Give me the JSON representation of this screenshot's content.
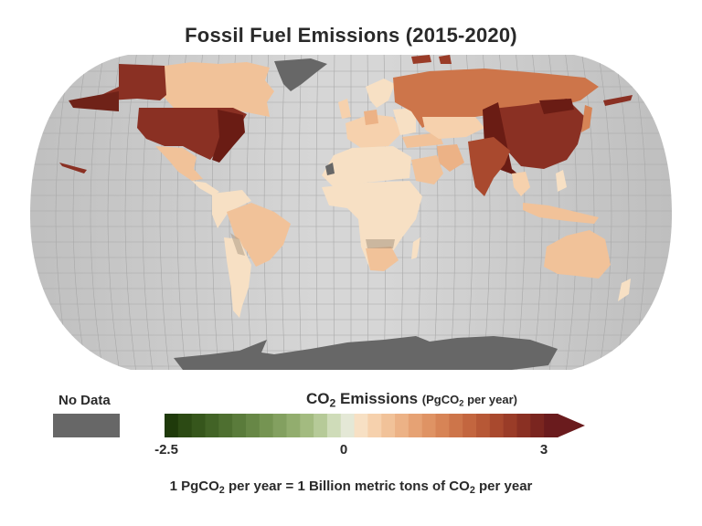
{
  "title": "Fossil Fuel Emissions (2015-2020)",
  "legend": {
    "no_data_label": "No Data",
    "no_data_color": "#676767",
    "title_main": "CO",
    "title_sub": "2",
    "title_rest": " Emissions ",
    "unit_pre": "(PgCO",
    "unit_sub": "2",
    "unit_post": " per year)",
    "ticks": [
      {
        "label": "-2.5",
        "value": -2.5
      },
      {
        "label": "0",
        "value": 0
      },
      {
        "label": "3",
        "value": 3
      }
    ],
    "min": -2.5,
    "max": 3,
    "extend": "max",
    "colors": [
      "#1f3a0b",
      "#2c4a14",
      "#36561c",
      "#426326",
      "#4e6f30",
      "#5a7b3b",
      "#678746",
      "#759452",
      "#83a060",
      "#92ad6e",
      "#a3bb80",
      "#b6ca98",
      "#cfdcb9",
      "#e4e8d6",
      "#f7e0c4",
      "#f6d1ad",
      "#f1c299",
      "#ecb286",
      "#e6a274",
      "#df9364",
      "#d78456",
      "#cd754a",
      "#c3663f",
      "#b75836",
      "#a9492e",
      "#9a3c28",
      "#8a3023",
      "#7a251f",
      "#6a1b1d"
    ]
  },
  "footnote": {
    "p1": "1 PgCO",
    "s1": "2",
    "p2": " per year = 1 Billion metric tons of CO",
    "s2": "2",
    "p3": " per year"
  },
  "chart_data": {
    "type": "choropleth-3d-map",
    "title": "Fossil Fuel Emissions (2015-2020)",
    "projection": "Robinson",
    "variable": "CO2 Emissions",
    "unit": "PgCO2 per year",
    "unit_note": "1 PgCO2 per year = 1 Billion metric tons of CO2 per year",
    "scale": {
      "min": -2.5,
      "max": 3,
      "ticks": [
        -2.5,
        0,
        3
      ],
      "diverging_center": 0,
      "low_color": "green",
      "high_color": "dark red"
    },
    "no_data": [
      "Greenland",
      "Antarctica",
      "Western Sahara"
    ],
    "regions": [
      {
        "name": "China",
        "approx_value": 3.0,
        "color": "#8a3023"
      },
      {
        "name": "United States",
        "approx_value": 3.0,
        "color": "#8a3023"
      },
      {
        "name": "India",
        "approx_value": 2.2,
        "color": "#a9492e"
      },
      {
        "name": "Russia",
        "approx_value": 1.6,
        "color": "#cd754a"
      },
      {
        "name": "Japan",
        "approx_value": 1.1,
        "color": "#d78456"
      },
      {
        "name": "Iran",
        "approx_value": 0.7,
        "color": "#ecb286"
      },
      {
        "name": "Saudi Arabia",
        "approx_value": 0.6,
        "color": "#f1c299"
      },
      {
        "name": "Germany",
        "approx_value": 0.7,
        "color": "#ecb286"
      },
      {
        "name": "Canada",
        "approx_value": 0.5,
        "color": "#f1c299"
      },
      {
        "name": "Brazil",
        "approx_value": 0.5,
        "color": "#f1c299"
      },
      {
        "name": "Mexico",
        "approx_value": 0.4,
        "color": "#f1c299"
      },
      {
        "name": "Indonesia",
        "approx_value": 0.6,
        "color": "#f1c299"
      },
      {
        "name": "Australia",
        "approx_value": 0.4,
        "color": "#f1c299"
      },
      {
        "name": "South Africa",
        "approx_value": 0.45,
        "color": "#f1c299"
      },
      {
        "name": "Africa (most countries)",
        "approx_value": 0.05,
        "color": "#f7e0c4"
      },
      {
        "name": "South America (others)",
        "approx_value": 0.1,
        "color": "#f6d1ad"
      },
      {
        "name": "Europe (others)",
        "approx_value": 0.2,
        "color": "#f6d1ad"
      }
    ]
  }
}
